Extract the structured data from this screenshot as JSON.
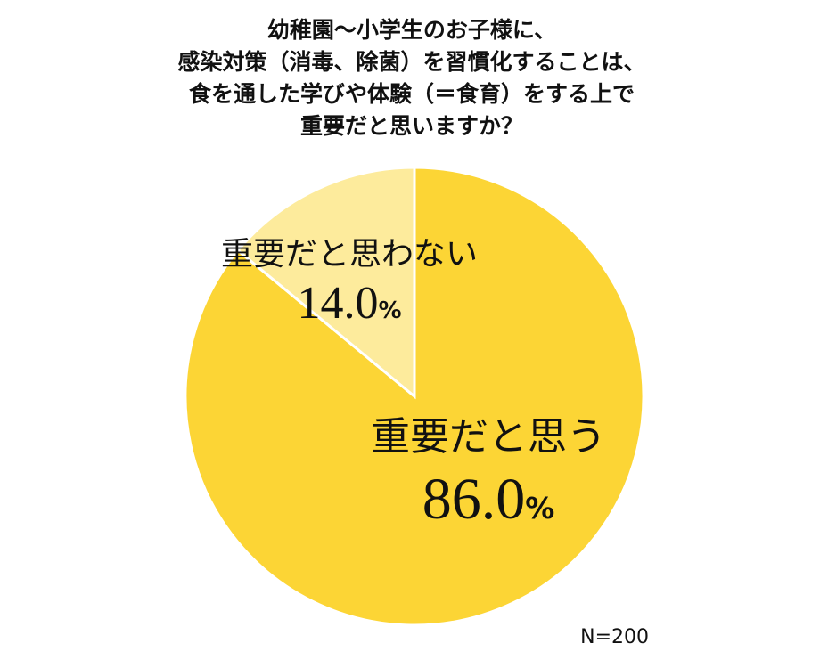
{
  "chart_data": {
    "type": "pie",
    "title": [
      "幼稚園〜小学生のお子様に、",
      "感染対策（消毒、除菌）を習慣化することは、",
      "食を通した学びや体験（＝食育）をする上で",
      "重要だと思いますか？"
    ],
    "categories": [
      "重要だと思う",
      "重要だと思わない"
    ],
    "values": [
      86.0,
      14.0
    ],
    "value_labels": [
      "86.0%",
      "14.0%"
    ],
    "colors": [
      "#fcd535",
      "#fdeb9c"
    ],
    "note": "N=200"
  }
}
